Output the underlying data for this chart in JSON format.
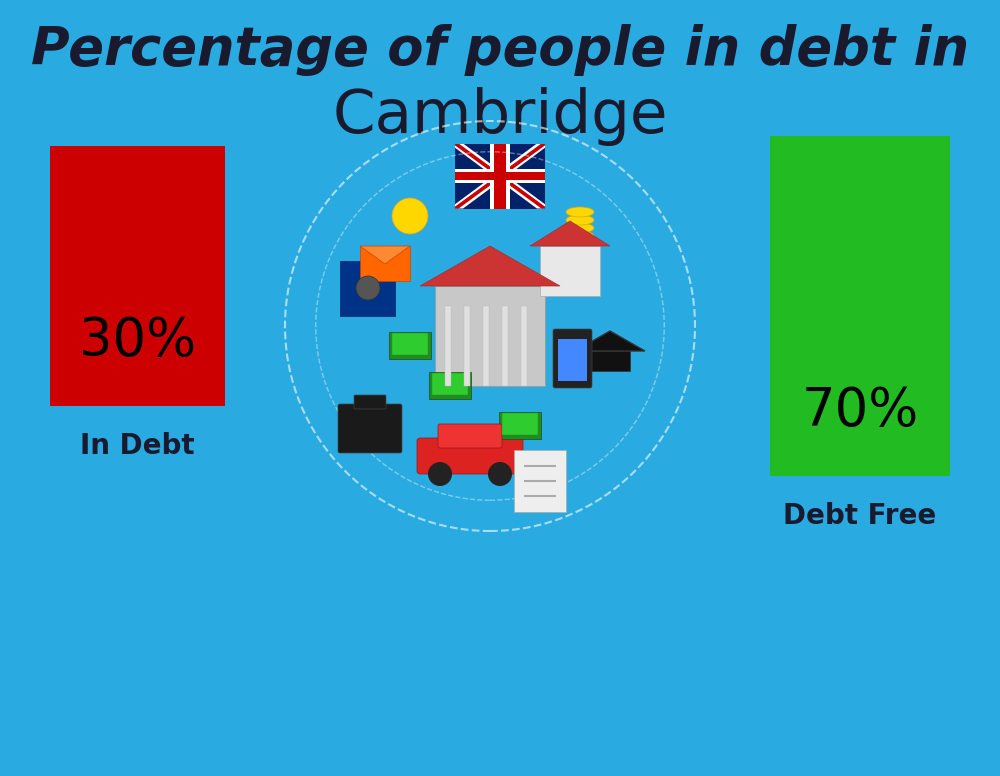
{
  "background_color": "#29ABE2",
  "title_line1": "Percentage of people in debt in",
  "title_line2": "Cambridge",
  "title_color": "#1a1a2e",
  "title_fontsize_line1": 38,
  "title_fontsize_line2": 44,
  "bar1_label": "30%",
  "bar1_color": "#CC0000",
  "bar1_text_color": "#000000",
  "bar1_caption": "In Debt",
  "bar2_label": "70%",
  "bar2_color": "#22BB22",
  "bar2_text_color": "#000000",
  "bar2_caption": "Debt Free",
  "caption_color": "#1a1a2e",
  "caption_fontsize": 20,
  "pct_fontsize": 38
}
